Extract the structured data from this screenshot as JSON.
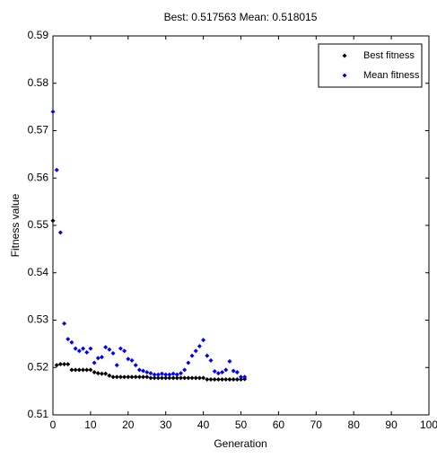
{
  "chart_data": {
    "type": "scatter",
    "title": "Best: 0.517563 Mean: 0.518015",
    "x_label": "Generation",
    "y_label": "Fitness value",
    "x": [
      0,
      1,
      2,
      3,
      4,
      5,
      6,
      7,
      8,
      9,
      10,
      11,
      12,
      13,
      14,
      15,
      16,
      17,
      18,
      19,
      20,
      21,
      22,
      23,
      24,
      25,
      26,
      27,
      28,
      29,
      30,
      31,
      32,
      33,
      34,
      35,
      36,
      37,
      38,
      39,
      40,
      41,
      42,
      43,
      44,
      45,
      46,
      47,
      48,
      49,
      50,
      51
    ],
    "series": [
      {
        "name": "Best fitness",
        "color": "#000000",
        "values": [
          0.551,
          0.5205,
          0.5207,
          0.5207,
          0.5207,
          0.5195,
          0.5195,
          0.5195,
          0.5195,
          0.5195,
          0.5195,
          0.519,
          0.5188,
          0.5187,
          0.5187,
          0.5183,
          0.518,
          0.518,
          0.518,
          0.518,
          0.518,
          0.518,
          0.518,
          0.518,
          0.518,
          0.518,
          0.5178,
          0.5178,
          0.5178,
          0.5178,
          0.5178,
          0.5178,
          0.5178,
          0.5178,
          0.5178,
          0.5178,
          0.5178,
          0.5178,
          0.5178,
          0.5178,
          0.5178,
          0.5175,
          0.5175,
          0.5175,
          0.5175,
          0.5175,
          0.5175,
          0.5175,
          0.5175,
          0.5175,
          0.5175,
          0.517563
        ]
      },
      {
        "name": "Mean fitness",
        "color": "#0000ff",
        "values": [
          0.574,
          0.5617,
          0.5485,
          0.5293,
          0.526,
          0.5253,
          0.524,
          0.5235,
          0.524,
          0.5232,
          0.524,
          0.521,
          0.522,
          0.5222,
          0.5243,
          0.5238,
          0.523,
          0.5205,
          0.524,
          0.5235,
          0.5218,
          0.5215,
          0.5205,
          0.5195,
          0.5193,
          0.519,
          0.5188,
          0.5185,
          0.5185,
          0.5187,
          0.5185,
          0.5185,
          0.5187,
          0.5185,
          0.5188,
          0.5195,
          0.521,
          0.5225,
          0.5235,
          0.5245,
          0.5258,
          0.5225,
          0.5215,
          0.5192,
          0.5188,
          0.519,
          0.5195,
          0.5213,
          0.5193,
          0.519,
          0.518,
          0.518015
        ]
      }
    ],
    "xlim": [
      0,
      100
    ],
    "xticks": [
      0,
      10,
      20,
      30,
      40,
      50,
      60,
      70,
      80,
      90,
      100
    ],
    "ylim": [
      0.51,
      0.59
    ],
    "yticks": [
      0.51,
      0.52,
      0.53,
      0.54,
      0.55,
      0.56,
      0.57,
      0.58,
      0.59
    ],
    "legend": "northeast"
  }
}
